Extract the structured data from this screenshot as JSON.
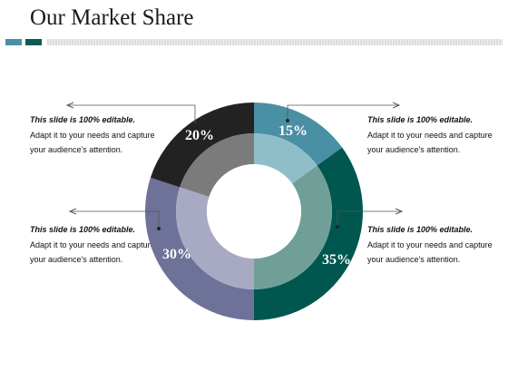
{
  "page": {
    "title": "Our Market Share"
  },
  "notes": [
    {
      "heading": "This slide is 100% editable.",
      "body": "Adapt it to your needs and capture your audience's attention."
    },
    {
      "heading": "This slide is 100% editable.",
      "body": "Adapt it to your needs and capture your audience's attention."
    },
    {
      "heading": "This slide is 100% editable.",
      "body": "Adapt it to your needs and capture your audience's attention."
    },
    {
      "heading": "This slide is 100% editable.",
      "body": "Adapt it to your needs and capture your audience's attention."
    }
  ],
  "segments": [
    {
      "label": "15%",
      "value": 15,
      "outer_color": "#4a90a4",
      "inner_color": "#8fbec9"
    },
    {
      "label": "35%",
      "value": 35,
      "outer_color": "#00574f",
      "inner_color": "#6f9f97"
    },
    {
      "label": "30%",
      "value": 30,
      "outer_color": "#6e7299",
      "inner_color": "#a8aac4"
    },
    {
      "label": "20%",
      "value": 20,
      "outer_color": "#222222",
      "inner_color": "#7b7b7b"
    }
  ]
}
